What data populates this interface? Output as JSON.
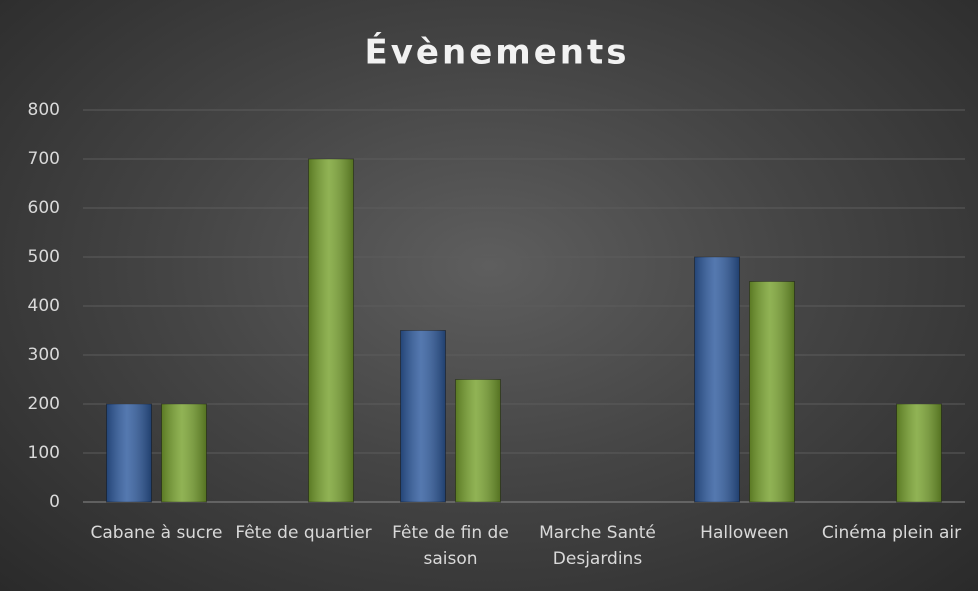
{
  "chart_data": {
    "type": "bar",
    "title": "Évènements",
    "categories": [
      "Cabane à sucre",
      "Fête de quartier",
      "Fête de fin de saison",
      "Marche Santé Desjardins",
      "Halloween",
      "Cinéma plein air"
    ],
    "series": [
      {
        "color": "#2f5b9e",
        "values": [
          200,
          null,
          350,
          null,
          500,
          null
        ]
      },
      {
        "color": "#78a22f",
        "values": [
          200,
          700,
          250,
          null,
          450,
          200
        ]
      }
    ],
    "ylim": [
      0,
      800
    ],
    "yticks": [
      0,
      100,
      200,
      300,
      400,
      500,
      600,
      700,
      800
    ],
    "grid": true
  }
}
